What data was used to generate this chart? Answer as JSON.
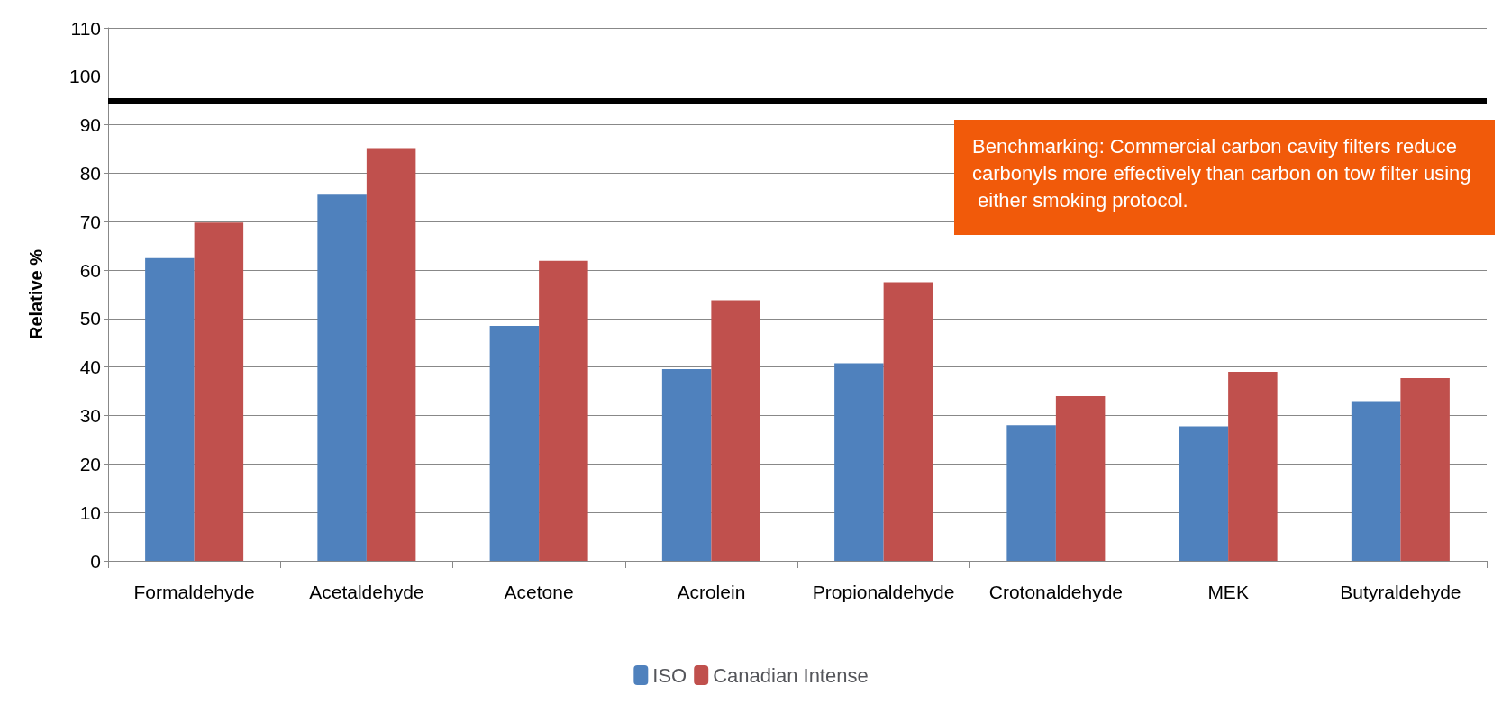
{
  "chart_data": {
    "type": "bar",
    "ylabel": "Relative %",
    "categories": [
      "Formaldehyde",
      "Acetaldehyde",
      "Acetone",
      "Acrolein",
      "Propionaldehyde",
      "Crotonaldehyde",
      "MEK",
      "Butyraldehyde"
    ],
    "series": [
      {
        "name": "ISO",
        "color": "#4f81bd",
        "values": [
          62.5,
          75.6,
          48.5,
          39.6,
          40.8,
          28,
          27.8,
          33
        ]
      },
      {
        "name": "Canadian Intense",
        "color": "#c0504d",
        "values": [
          69.8,
          85.2,
          61.9,
          53.8,
          57.5,
          34,
          39,
          37.7
        ]
      }
    ],
    "ylim": [
      0,
      110
    ],
    "yticks": [
      0,
      10,
      20,
      30,
      40,
      50,
      60,
      70,
      80,
      90,
      100,
      110
    ],
    "grid": "y",
    "legend": "bottom",
    "ref_lines": [
      {
        "axis": "y",
        "value": 95,
        "color": "#000000"
      }
    ],
    "annotations": [
      "Benchmarking: Commercial carbon cavity filters reduce carbonyls more effectively than carbon on tow filter using either smoking protocol."
    ]
  }
}
